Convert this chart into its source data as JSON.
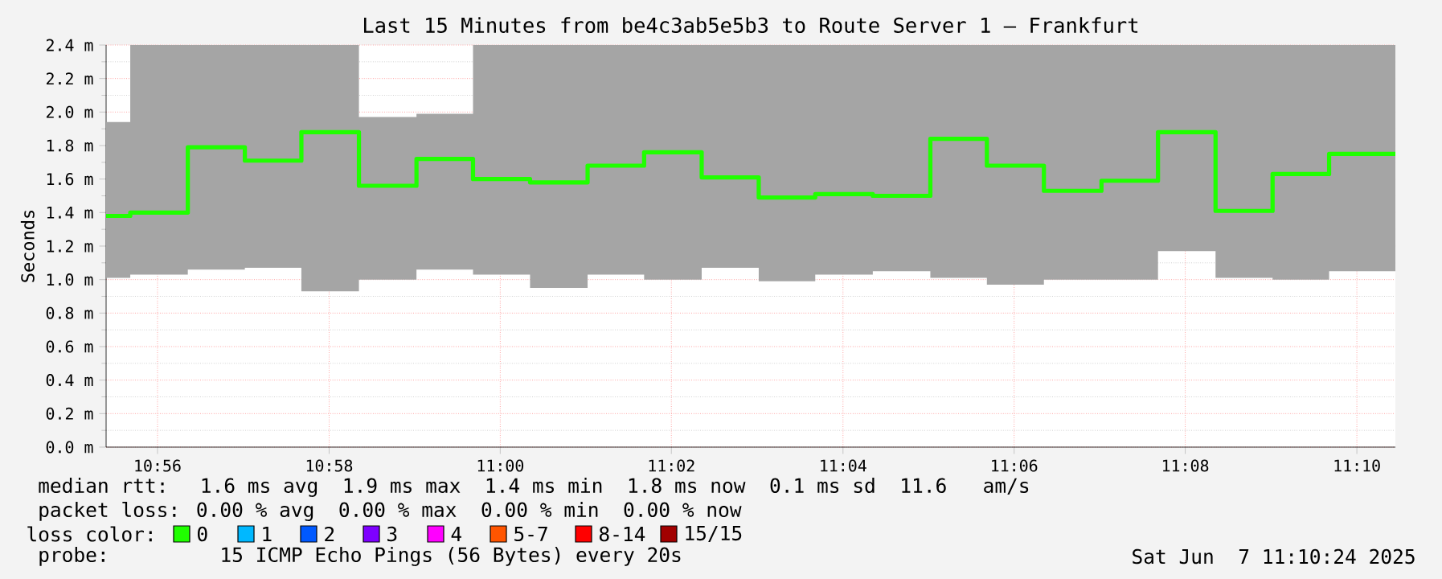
{
  "chart_data": {
    "type": "step",
    "title": "Last 15 Minutes from be4c3ab5e5b3 to Route Server 1 – Frankfurt",
    "ylabel": "Seconds",
    "x": [
      10.9233,
      10.928,
      10.9392,
      10.9503,
      10.9613,
      10.9725,
      10.9837,
      10.9947,
      11.0058,
      11.017,
      11.028,
      11.0392,
      11.0503,
      11.0613,
      11.0725,
      11.0837,
      11.0947,
      11.1058,
      11.117,
      11.128,
      11.1392,
      11.1503,
      11.1613,
      11.1742
    ],
    "xlim": [
      10.9233,
      11.1742
    ],
    "xticks": [
      {
        "value": 10.9333,
        "label": "10:56"
      },
      {
        "value": 10.9667,
        "label": "10:58"
      },
      {
        "value": 11.0,
        "label": "11:00"
      },
      {
        "value": 11.0333,
        "label": "11:02"
      },
      {
        "value": 11.0667,
        "label": "11:04"
      },
      {
        "value": 11.1,
        "label": "11:06"
      },
      {
        "value": 11.1333,
        "label": "11:08"
      },
      {
        "value": 11.1667,
        "label": "11:10"
      }
    ],
    "ylim": [
      0,
      2.4
    ],
    "yticks": [
      {
        "value": 0,
        "label": "0.0 m"
      },
      {
        "value": 0.2,
        "label": "0.2 m"
      },
      {
        "value": 0.4,
        "label": "0.4 m"
      },
      {
        "value": 0.6,
        "label": "0.6 m"
      },
      {
        "value": 0.8,
        "label": "0.8 m"
      },
      {
        "value": 1.0,
        "label": "1.0 m"
      },
      {
        "value": 1.2,
        "label": "1.2 m"
      },
      {
        "value": 1.4,
        "label": "1.4 m"
      },
      {
        "value": 1.6,
        "label": "1.6 m"
      },
      {
        "value": 1.8,
        "label": "1.8 m"
      },
      {
        "value": 2.0,
        "label": "2.0 m"
      },
      {
        "value": 2.2,
        "label": "2.2 m"
      },
      {
        "value": 2.4,
        "label": "2.4 m"
      }
    ],
    "grid": true,
    "legend": "bottom left",
    "legend_title": "loss color:",
    "series": [
      {
        "name": "0",
        "color": "#20ff00",
        "values": [
          1.38,
          1.4,
          1.79,
          1.71,
          1.88,
          1.56,
          1.72,
          1.6,
          1.58,
          1.68,
          1.76,
          1.61,
          1.49,
          1.51,
          1.5,
          1.84,
          1.68,
          1.53,
          1.59,
          1.88,
          1.41,
          1.63,
          1.75,
          1.75
        ],
        "lower": [
          1.01,
          1.03,
          1.06,
          1.07,
          0.93,
          1.0,
          1.06,
          1.03,
          0.95,
          1.03,
          1.0,
          1.07,
          0.99,
          1.03,
          1.05,
          1.01,
          0.97,
          1.0,
          1.0,
          1.17,
          1.01,
          1.0,
          1.05,
          1.05
        ],
        "upper": [
          1.94,
          2.4,
          2.4,
          2.4,
          2.4,
          1.97,
          1.99,
          2.4,
          2.4,
          2.4,
          2.4,
          2.4,
          2.4,
          2.4,
          2.4,
          2.4,
          2.4,
          2.4,
          2.4,
          2.4,
          2.4,
          2.4,
          2.4,
          2.4
        ]
      },
      {
        "name": "1",
        "color": "#00b8ff",
        "values": [
          null,
          null,
          null,
          null,
          null,
          null,
          null,
          null,
          null,
          null,
          null,
          null,
          null,
          null,
          null,
          null,
          null,
          null,
          null,
          null,
          null,
          null,
          null,
          null
        ]
      },
      {
        "name": "2",
        "color": "#0059ff",
        "values": [
          null,
          null,
          null,
          null,
          null,
          null,
          null,
          null,
          null,
          null,
          null,
          null,
          null,
          null,
          null,
          null,
          null,
          null,
          null,
          null,
          null,
          null,
          null,
          null
        ]
      },
      {
        "name": "3",
        "color": "#7e00ff",
        "values": [
          null,
          null,
          null,
          null,
          null,
          null,
          null,
          null,
          null,
          null,
          null,
          null,
          null,
          null,
          null,
          null,
          null,
          null,
          null,
          null,
          null,
          null,
          null,
          null
        ]
      },
      {
        "name": "4",
        "color": "#ff00ff",
        "values": [
          null,
          null,
          null,
          null,
          null,
          null,
          null,
          null,
          null,
          null,
          null,
          null,
          null,
          null,
          null,
          null,
          null,
          null,
          null,
          null,
          null,
          null,
          null,
          null
        ]
      },
      {
        "name": "5-7",
        "color": "#ff5500",
        "values": [
          null,
          null,
          null,
          null,
          null,
          null,
          null,
          null,
          null,
          null,
          null,
          null,
          null,
          null,
          null,
          null,
          null,
          null,
          null,
          null,
          null,
          null,
          null,
          null
        ]
      },
      {
        "name": "8-14",
        "color": "#ff0000",
        "values": [
          null,
          null,
          null,
          null,
          null,
          null,
          null,
          null,
          null,
          null,
          null,
          null,
          null,
          null,
          null,
          null,
          null,
          null,
          null,
          null,
          null,
          null,
          null,
          null
        ]
      },
      {
        "name": "15/15",
        "color": "#a10000",
        "values": [
          null,
          null,
          null,
          null,
          null,
          null,
          null,
          null,
          null,
          null,
          null,
          null,
          null,
          null,
          null,
          null,
          null,
          null,
          null,
          null,
          null,
          null,
          null,
          null
        ]
      }
    ],
    "annotations": [
      "median rtt:  1.6 ms avg  1.9 ms max  1.4 ms min  1.8 ms now  0.1 ms sd  11.6   am/s",
      "packet loss: 0.00 % avg  0.00 % max  0.00 % min  0.00 % now",
      "probe:       15 ICMP Echo Pings (56 Bytes) every 20s",
      "Sat Jun  7 11:10:24 2025"
    ]
  }
}
